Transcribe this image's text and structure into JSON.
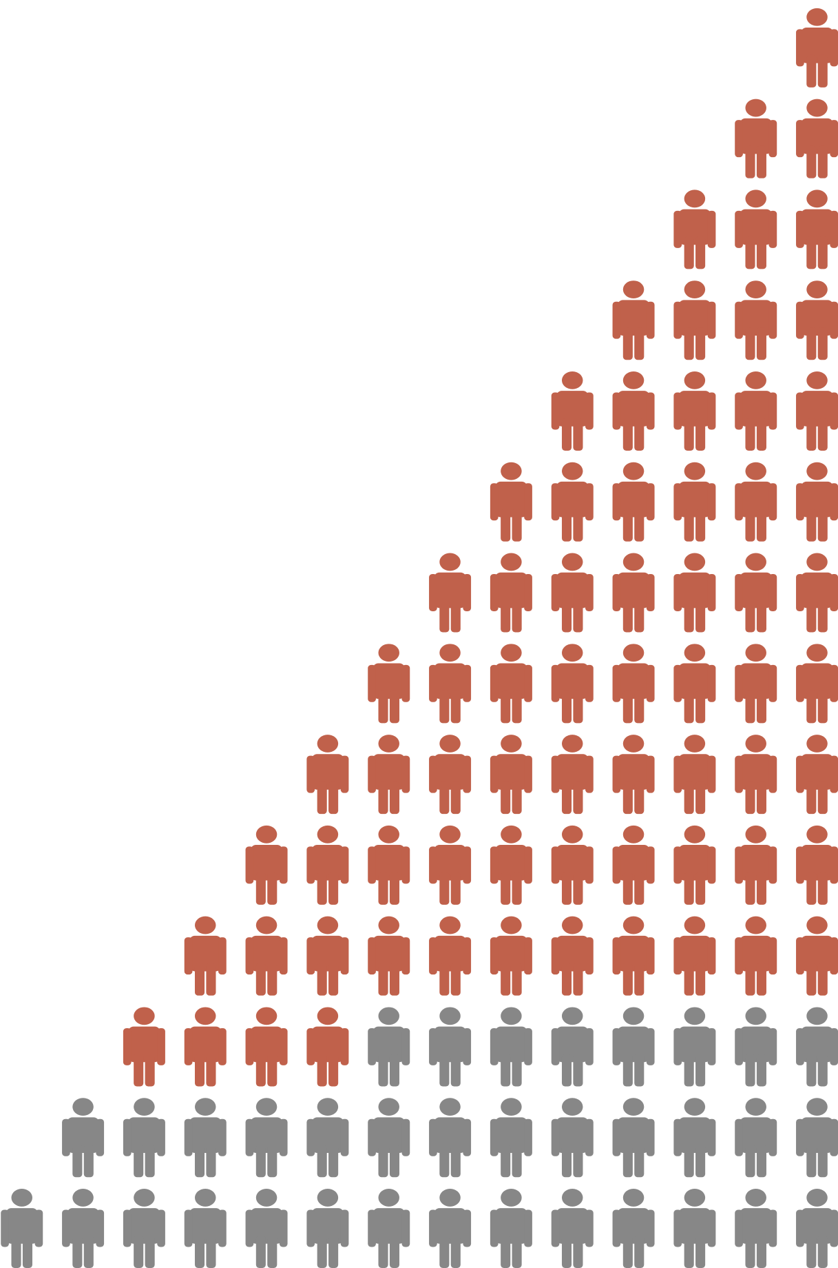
{
  "chart_data": {
    "type": "pictogram",
    "categories": [
      null,
      null,
      null,
      null,
      null,
      null,
      null,
      null,
      null,
      null,
      null,
      null,
      null,
      null
    ],
    "series": [
      {
        "color": "#878787",
        "values": [
          1,
          2,
          2,
          2,
          2,
          2,
          3,
          3,
          3,
          3,
          3,
          3,
          3,
          3
        ]
      },
      {
        "color": "#c0614b",
        "values": [
          0,
          0,
          1,
          2,
          3,
          4,
          4,
          5,
          6,
          7,
          8,
          9,
          10,
          11
        ]
      }
    ]
  }
}
